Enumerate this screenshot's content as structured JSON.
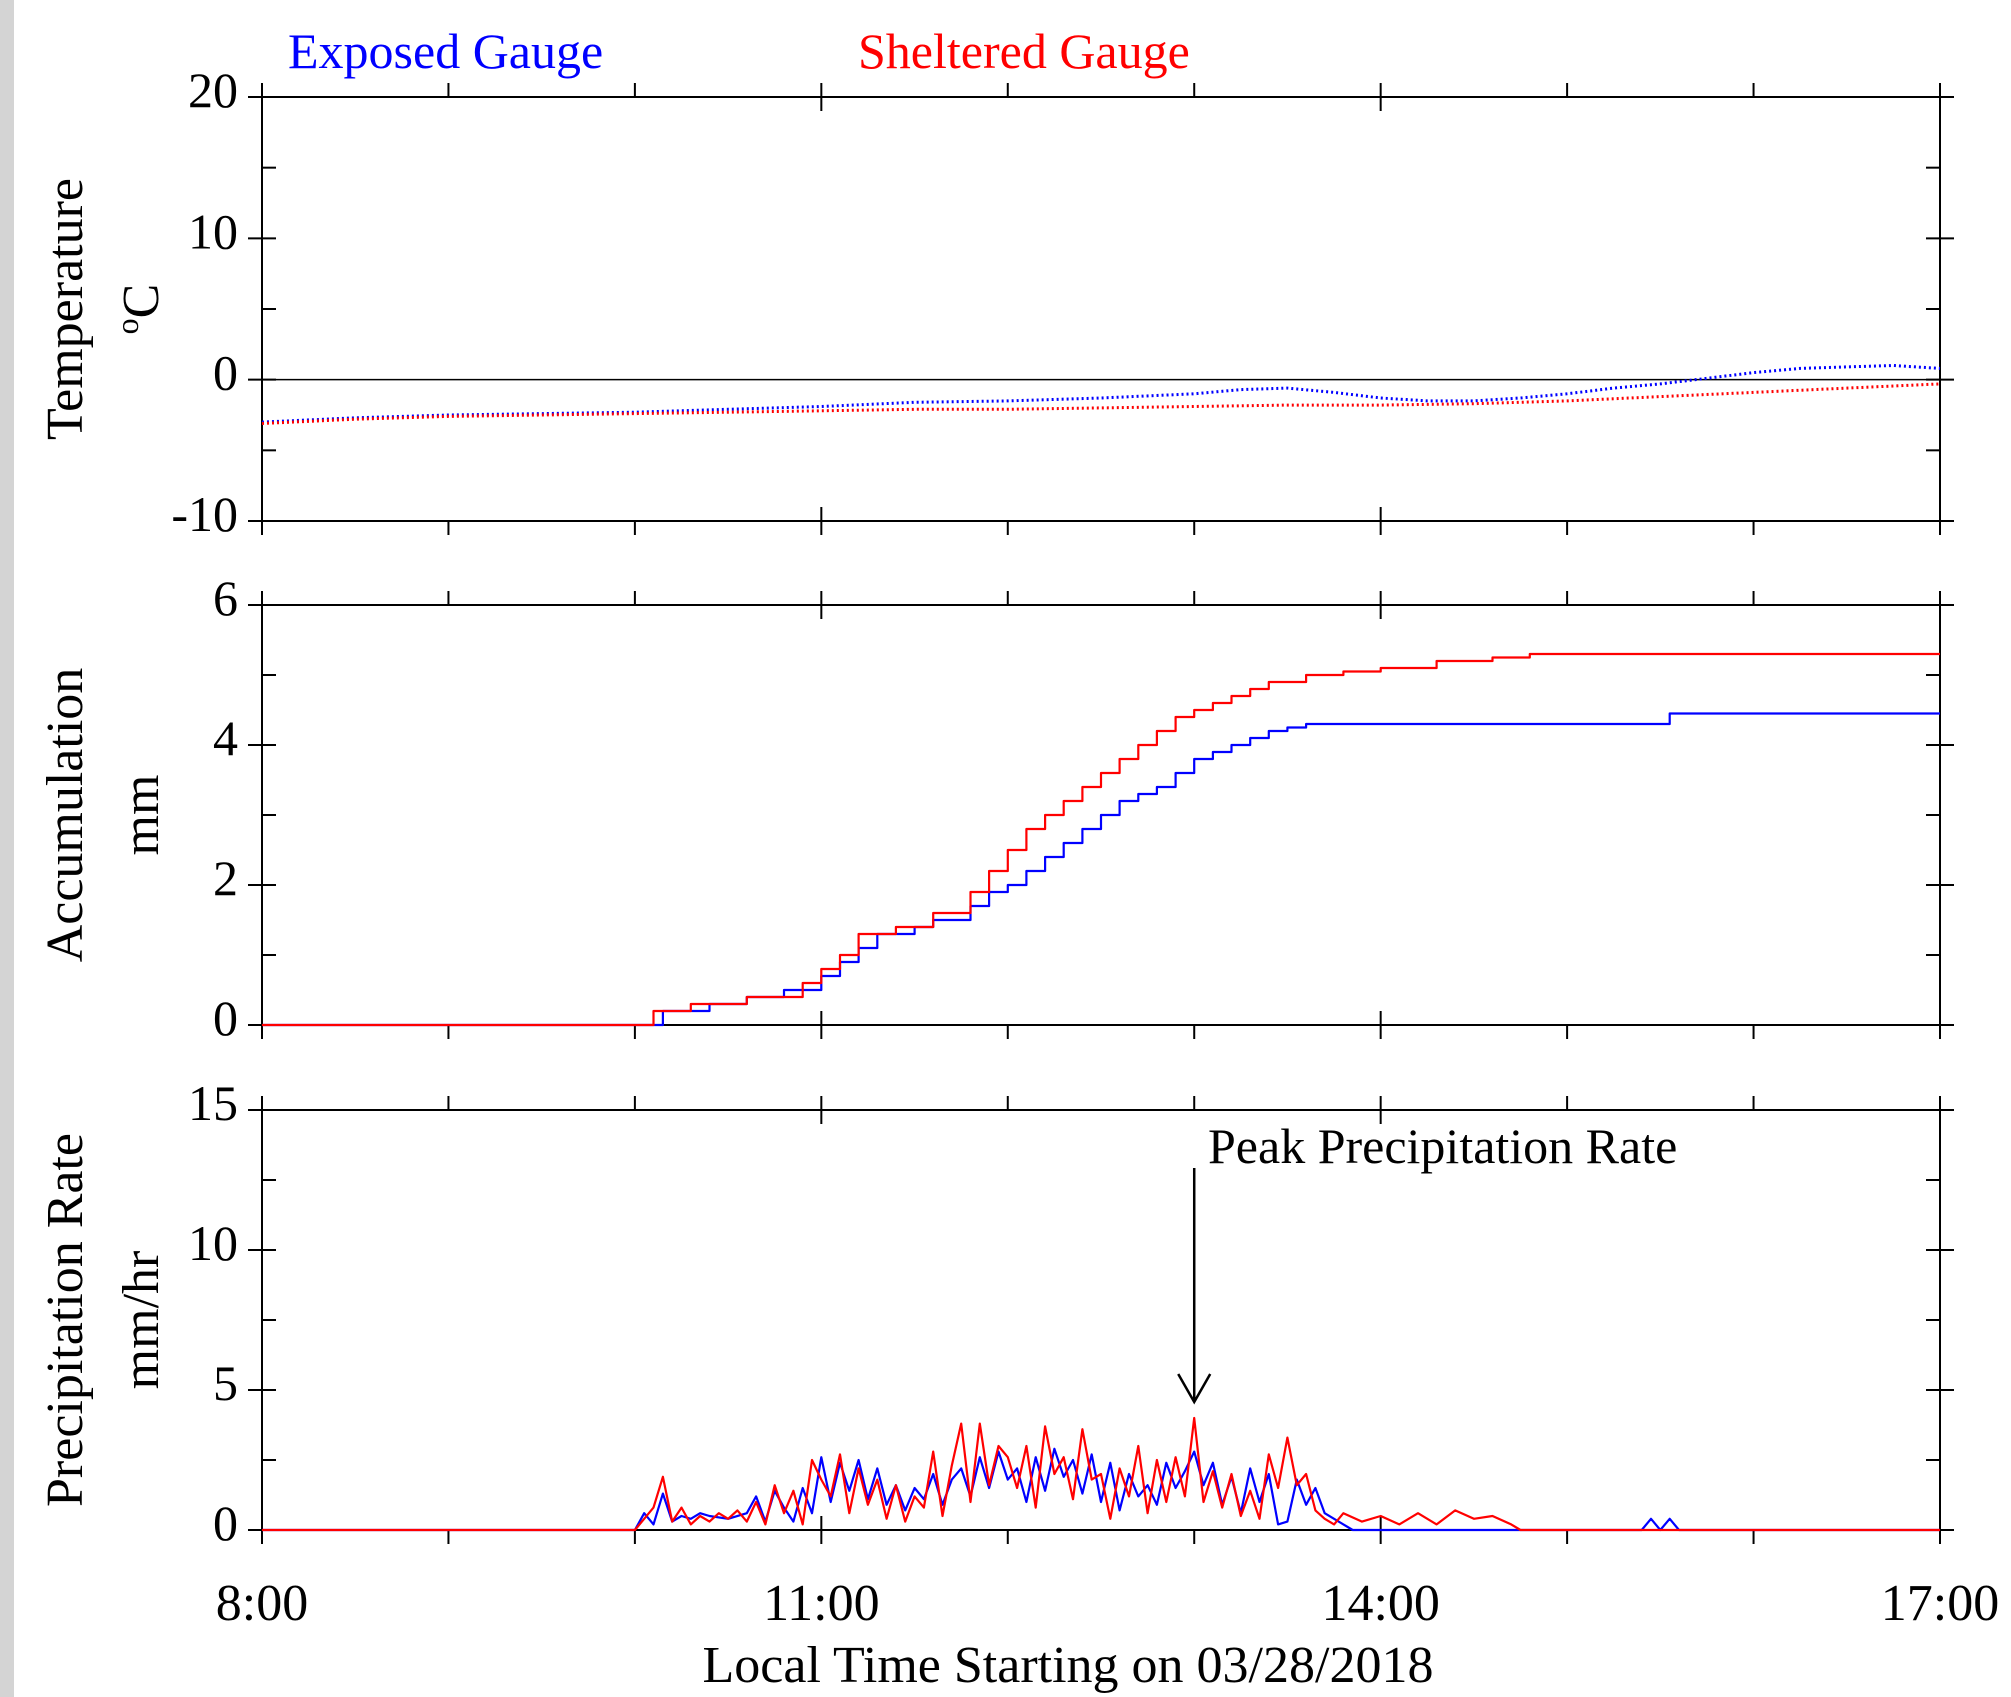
{
  "legend": {
    "exposed_label": "Exposed Gauge",
    "sheltered_label": "Sheltered Gauge",
    "exposed_color": "#0000ff",
    "sheltered_color": "#ff0000"
  },
  "annotation": {
    "text": "Peak Precipitation Rate",
    "points_to_time": 13.0,
    "panel": "precip"
  },
  "chart_data": [
    {
      "id": "temp",
      "type": "line",
      "ylabel": [
        "Temperature",
        "°C"
      ],
      "ylabel_main": "Temperature",
      "ylabel_unit_super": "o",
      "ylabel_unit": "C",
      "ylim": [
        -10,
        20
      ],
      "yticks": [
        -10,
        0,
        10,
        20
      ],
      "yticklabels": [
        "-10",
        "0",
        "10",
        "20"
      ],
      "xlim": [
        8,
        17
      ],
      "marker_style": "dots",
      "series": [
        {
          "name": "Exposed Gauge",
          "color": "#0000ff",
          "x": [
            8.0,
            8.5,
            9.0,
            9.5,
            10.0,
            10.5,
            11.0,
            11.5,
            12.0,
            12.5,
            13.0,
            13.25,
            13.5,
            13.75,
            14.0,
            14.25,
            14.5,
            14.75,
            15.0,
            15.25,
            15.5,
            15.75,
            16.0,
            16.25,
            16.5,
            16.75,
            17.0
          ],
          "values": [
            -3.0,
            -2.7,
            -2.5,
            -2.4,
            -2.3,
            -2.1,
            -1.9,
            -1.6,
            -1.5,
            -1.3,
            -1.0,
            -0.7,
            -0.6,
            -0.9,
            -1.3,
            -1.5,
            -1.5,
            -1.3,
            -1.0,
            -0.6,
            -0.3,
            0.1,
            0.5,
            0.8,
            0.9,
            1.0,
            0.8
          ]
        },
        {
          "name": "Sheltered Gauge",
          "color": "#ff0000",
          "x": [
            8.0,
            8.5,
            9.0,
            9.5,
            10.0,
            10.5,
            11.0,
            11.5,
            12.0,
            12.5,
            13.0,
            13.5,
            14.0,
            14.5,
            15.0,
            15.5,
            16.0,
            16.5,
            17.0
          ],
          "values": [
            -3.1,
            -2.8,
            -2.6,
            -2.5,
            -2.4,
            -2.3,
            -2.2,
            -2.1,
            -2.1,
            -2.0,
            -1.9,
            -1.8,
            -1.8,
            -1.7,
            -1.5,
            -1.2,
            -0.9,
            -0.6,
            -0.3
          ]
        }
      ]
    },
    {
      "id": "accum",
      "type": "line",
      "step": true,
      "ylabel": [
        "Accumulation",
        "mm"
      ],
      "ylim": [
        0,
        6
      ],
      "yticks": [
        0,
        2,
        4,
        6
      ],
      "yticklabels": [
        "0",
        "2",
        "4",
        "6"
      ],
      "xlim": [
        8,
        17
      ],
      "series": [
        {
          "name": "Exposed Gauge",
          "color": "#0000ff",
          "x": [
            8.0,
            10.1,
            10.15,
            10.4,
            10.6,
            10.8,
            11.0,
            11.1,
            11.2,
            11.3,
            11.5,
            11.6,
            11.8,
            11.9,
            12.0,
            12.1,
            12.2,
            12.3,
            12.4,
            12.5,
            12.6,
            12.7,
            12.8,
            12.9,
            13.0,
            13.1,
            13.2,
            13.3,
            13.4,
            13.5,
            13.6,
            13.8,
            14.0,
            15.55,
            15.55,
            17.0
          ],
          "values": [
            0.0,
            0.0,
            0.2,
            0.3,
            0.4,
            0.5,
            0.7,
            0.9,
            1.1,
            1.3,
            1.4,
            1.5,
            1.7,
            1.9,
            2.0,
            2.2,
            2.4,
            2.6,
            2.8,
            3.0,
            3.2,
            3.3,
            3.4,
            3.6,
            3.8,
            3.9,
            4.0,
            4.1,
            4.2,
            4.25,
            4.3,
            4.3,
            4.3,
            4.3,
            4.45,
            4.45
          ]
        },
        {
          "name": "Sheltered Gauge",
          "color": "#ff0000",
          "x": [
            8.0,
            10.05,
            10.1,
            10.3,
            10.6,
            10.9,
            11.0,
            11.1,
            11.2,
            11.4,
            11.6,
            11.8,
            11.9,
            12.0,
            12.1,
            12.2,
            12.3,
            12.4,
            12.5,
            12.6,
            12.7,
            12.8,
            12.9,
            13.0,
            13.1,
            13.2,
            13.3,
            13.4,
            13.6,
            13.8,
            14.0,
            14.3,
            14.6,
            14.8,
            17.0
          ],
          "values": [
            0.0,
            0.0,
            0.2,
            0.3,
            0.4,
            0.6,
            0.8,
            1.0,
            1.3,
            1.4,
            1.6,
            1.9,
            2.2,
            2.5,
            2.8,
            3.0,
            3.2,
            3.4,
            3.6,
            3.8,
            4.0,
            4.2,
            4.4,
            4.5,
            4.6,
            4.7,
            4.8,
            4.9,
            5.0,
            5.05,
            5.1,
            5.2,
            5.25,
            5.3,
            5.3
          ]
        }
      ]
    },
    {
      "id": "precip",
      "type": "line",
      "ylabel": [
        "Precipitation Rate",
        "mm/hr"
      ],
      "ylim": [
        0,
        15
      ],
      "yticks": [
        0,
        5,
        10,
        15
      ],
      "yticklabels": [
        "0",
        "5",
        "10",
        "15"
      ],
      "xlim": [
        8,
        17
      ],
      "xticks": [
        8,
        11,
        14,
        17
      ],
      "xticklabels": [
        "8:00",
        "11:00",
        "14:00",
        "17:00"
      ],
      "xlabel": "Local Time Starting on 03/28/2018",
      "series": [
        {
          "name": "Exposed Gauge",
          "color": "#0000ff",
          "x": [
            8.0,
            10.0,
            10.05,
            10.1,
            10.15,
            10.2,
            10.25,
            10.3,
            10.35,
            10.4,
            10.5,
            10.6,
            10.65,
            10.7,
            10.75,
            10.8,
            10.85,
            10.9,
            10.95,
            11.0,
            11.05,
            11.1,
            11.15,
            11.2,
            11.25,
            11.3,
            11.35,
            11.4,
            11.45,
            11.5,
            11.55,
            11.6,
            11.65,
            11.7,
            11.75,
            11.8,
            11.85,
            11.9,
            11.95,
            12.0,
            12.05,
            12.1,
            12.15,
            12.2,
            12.25,
            12.3,
            12.35,
            12.4,
            12.45,
            12.5,
            12.55,
            12.6,
            12.65,
            12.7,
            12.75,
            12.8,
            12.85,
            12.9,
            12.95,
            13.0,
            13.05,
            13.1,
            13.15,
            13.2,
            13.25,
            13.3,
            13.35,
            13.4,
            13.45,
            13.5,
            13.55,
            13.6,
            13.65,
            13.7,
            13.8,
            13.85,
            15.4,
            15.45,
            15.5,
            15.55,
            15.6,
            17.0
          ],
          "values": [
            0.0,
            0.0,
            0.6,
            0.2,
            1.3,
            0.3,
            0.5,
            0.4,
            0.6,
            0.5,
            0.4,
            0.6,
            1.2,
            0.3,
            1.4,
            0.8,
            0.3,
            1.5,
            0.6,
            2.6,
            1.0,
            2.4,
            1.4,
            2.5,
            1.1,
            2.2,
            0.9,
            1.6,
            0.7,
            1.5,
            1.1,
            2.0,
            0.9,
            1.8,
            2.2,
            1.2,
            2.6,
            1.5,
            2.8,
            1.8,
            2.2,
            1.0,
            2.6,
            1.4,
            2.9,
            1.9,
            2.5,
            1.3,
            2.7,
            1.0,
            2.4,
            0.7,
            2.0,
            1.2,
            1.6,
            0.9,
            2.4,
            1.5,
            2.1,
            2.8,
            1.6,
            2.4,
            0.9,
            1.9,
            0.6,
            2.2,
            1.0,
            2.0,
            0.2,
            0.3,
            1.8,
            0.9,
            1.5,
            0.6,
            0.2,
            0.0,
            0.0,
            0.4,
            0.0,
            0.4,
            0.0,
            0.0
          ]
        },
        {
          "name": "Sheltered Gauge",
          "color": "#ff0000",
          "x": [
            8.0,
            10.0,
            10.05,
            10.1,
            10.15,
            10.2,
            10.25,
            10.3,
            10.35,
            10.4,
            10.45,
            10.5,
            10.55,
            10.6,
            10.65,
            10.7,
            10.75,
            10.8,
            10.85,
            10.9,
            10.95,
            11.0,
            11.05,
            11.1,
            11.15,
            11.2,
            11.25,
            11.3,
            11.35,
            11.4,
            11.45,
            11.5,
            11.55,
            11.6,
            11.65,
            11.7,
            11.75,
            11.8,
            11.85,
            11.9,
            11.95,
            12.0,
            12.05,
            12.1,
            12.15,
            12.2,
            12.25,
            12.3,
            12.35,
            12.4,
            12.45,
            12.5,
            12.55,
            12.6,
            12.65,
            12.7,
            12.75,
            12.8,
            12.85,
            12.9,
            12.95,
            13.0,
            13.05,
            13.1,
            13.15,
            13.2,
            13.25,
            13.3,
            13.35,
            13.4,
            13.45,
            13.5,
            13.55,
            13.6,
            13.65,
            13.7,
            13.75,
            13.8,
            13.9,
            14.0,
            14.1,
            14.2,
            14.3,
            14.4,
            14.5,
            14.6,
            14.7,
            14.75,
            17.0
          ],
          "values": [
            0.0,
            0.0,
            0.4,
            0.8,
            1.9,
            0.3,
            0.8,
            0.2,
            0.5,
            0.3,
            0.6,
            0.4,
            0.7,
            0.3,
            1.0,
            0.2,
            1.6,
            0.6,
            1.4,
            0.2,
            2.5,
            1.8,
            1.2,
            2.7,
            0.6,
            2.2,
            0.9,
            1.8,
            0.4,
            1.6,
            0.3,
            1.2,
            0.8,
            2.8,
            0.5,
            2.3,
            3.8,
            1.0,
            3.8,
            1.6,
            3.0,
            2.6,
            1.5,
            3.0,
            0.8,
            3.7,
            2.0,
            2.6,
            1.1,
            3.6,
            1.8,
            2.0,
            0.4,
            2.2,
            1.2,
            3.0,
            0.6,
            2.5,
            1.0,
            2.6,
            1.2,
            4.0,
            1.0,
            2.1,
            0.8,
            2.0,
            0.5,
            1.4,
            0.4,
            2.7,
            1.5,
            3.3,
            1.6,
            2.0,
            0.7,
            0.4,
            0.2,
            0.6,
            0.3,
            0.5,
            0.2,
            0.6,
            0.2,
            0.7,
            0.4,
            0.5,
            0.2,
            0.0,
            0.0
          ]
        }
      ]
    }
  ]
}
